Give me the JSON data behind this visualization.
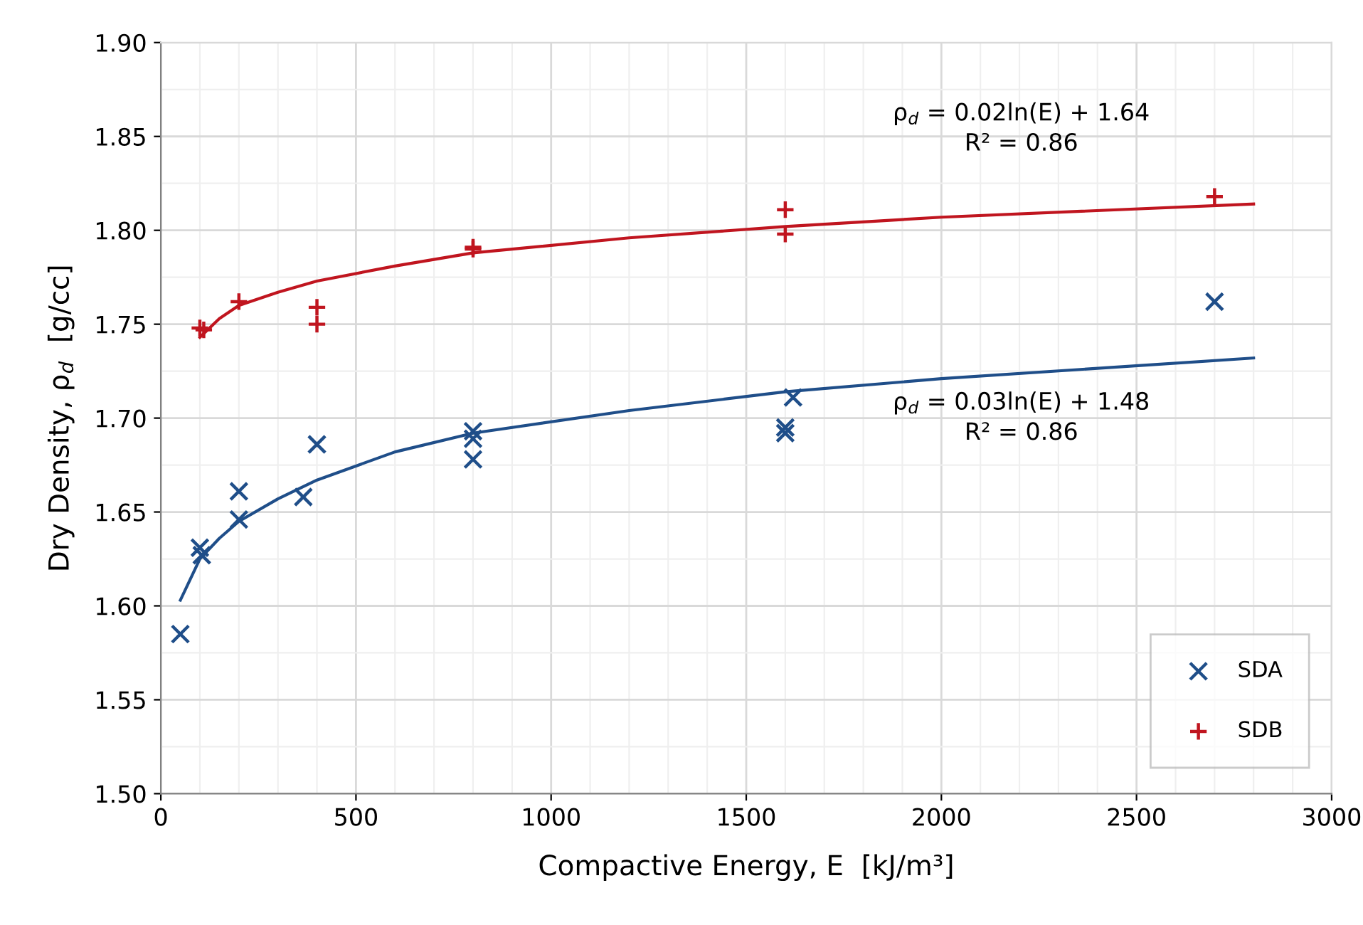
{
  "chart_data": {
    "type": "scatter",
    "xlabel": "Compactive Energy, E  [kJ/m³]",
    "ylabel": "Dry Density, ρ$_{d}$  [g/cc]",
    "xlim": [
      0,
      3000
    ],
    "xticks": [
      0,
      500,
      1000,
      1500,
      2000,
      2500,
      3000
    ],
    "ylim": [
      1.5,
      1.9
    ],
    "yticks": [
      {
        "value": 1.5,
        "label": "1.50"
      },
      {
        "value": 1.55,
        "label": "1.55"
      },
      {
        "value": 1.6,
        "label": "1.60"
      },
      {
        "value": 1.65,
        "label": "1.65"
      },
      {
        "value": 1.7,
        "label": "1.70"
      },
      {
        "value": 1.75,
        "label": "1.75"
      },
      {
        "value": 1.8,
        "label": "1.80"
      },
      {
        "value": 1.85,
        "label": "1.85"
      },
      {
        "value": 1.9,
        "label": "1.90"
      }
    ],
    "grid": true,
    "legend": "bottom right",
    "series": [
      {
        "name": "SDA",
        "color": "#1f4e89",
        "marker": "x",
        "x": [
          50,
          100,
          105,
          200,
          200,
          365,
          400,
          800,
          800,
          800,
          1600,
          1600,
          1620,
          2700
        ],
        "values": [
          1.585,
          1.631,
          1.627,
          1.661,
          1.646,
          1.658,
          1.686,
          1.693,
          1.689,
          1.678,
          1.695,
          1.692,
          1.711,
          1.762
        ]
      },
      {
        "name": "SDB",
        "color": "#c0151f",
        "marker": "cross",
        "x": [
          100,
          110,
          200,
          400,
          400,
          800,
          800,
          1600,
          1600,
          2700
        ],
        "values": [
          1.748,
          1.747,
          1.762,
          1.759,
          1.75,
          1.791,
          1.79,
          1.811,
          1.798,
          1.818
        ]
      },
      {
        "type": "line",
        "color": "#1f4e89",
        "marker": "none",
        "x": [
          50,
          100,
          150,
          200,
          300,
          400,
          600,
          800,
          1200,
          1600,
          2000,
          2800
        ],
        "values": [
          1.603,
          1.625,
          1.636,
          1.645,
          1.657,
          1.667,
          1.682,
          1.692,
          1.704,
          1.714,
          1.721,
          1.732
        ]
      },
      {
        "type": "line",
        "color": "#c0151f",
        "marker": "none",
        "x": [
          100,
          150,
          200,
          300,
          400,
          600,
          800,
          1200,
          1600,
          2000,
          2800
        ],
        "values": [
          1.743,
          1.753,
          1.76,
          1.767,
          1.773,
          1.781,
          1.788,
          1.796,
          1.802,
          1.807,
          1.814
        ]
      }
    ],
    "annotations": [
      "ρ$_{d}$ = 0.02ln(E) + 1.64\nR² = 0.86",
      "ρ$_{d}$ = 0.03ln(E) + 1.48\nR² = 0.86"
    ]
  }
}
